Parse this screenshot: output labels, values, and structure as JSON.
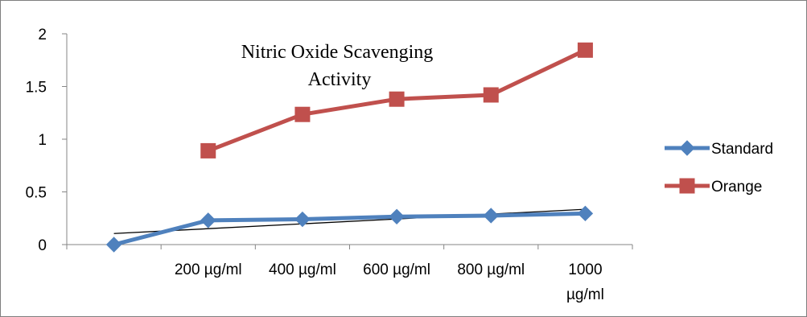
{
  "chart_data": {
    "type": "line",
    "title_lines": [
      "Nitric Oxide Scavenging",
      "Activity"
    ],
    "categories": [
      "",
      "200 µg/ml",
      "400 µg/ml",
      "600 µg/ml",
      "800 µg/ml",
      "1000 µg/ml"
    ],
    "category_label_lines": [
      [
        ""
      ],
      [
        "200 µg/ml"
      ],
      [
        "400 µg/ml"
      ],
      [
        "600 µg/ml"
      ],
      [
        "800 µg/ml"
      ],
      [
        "1000",
        "µg/ml"
      ]
    ],
    "ylim": [
      0,
      2
    ],
    "yticks": [
      "0",
      "0.5",
      "1",
      "1.5",
      "2"
    ],
    "ytick_values": [
      0,
      0.5,
      1,
      1.5,
      2
    ],
    "series": [
      {
        "name": "Standard",
        "values": [
          0,
          0.23,
          0.24,
          0.265,
          0.275,
          0.295
        ],
        "color": "#4f81bd",
        "marker": "diamond"
      },
      {
        "name": "Orange",
        "values": [
          null,
          0.89,
          1.235,
          1.38,
          1.42,
          1.845
        ],
        "color": "#c0504d",
        "marker": "square"
      }
    ],
    "trendline": {
      "series": "Standard",
      "type": "linear",
      "color": "#000000",
      "start": 0.105,
      "end": 0.335
    },
    "legend_position": "right",
    "grid": false,
    "colors": {
      "axis": "#868686",
      "frame": "#7f7f7f"
    }
  }
}
